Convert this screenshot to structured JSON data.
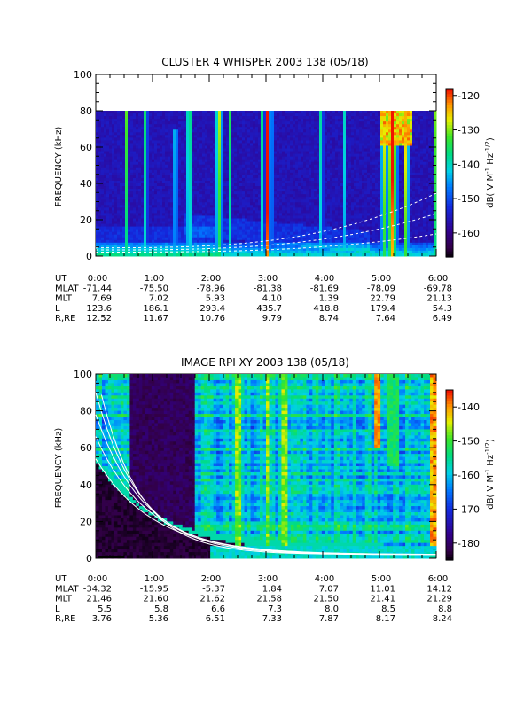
{
  "chart_data": [
    {
      "type": "heatmap",
      "title": "CLUSTER 4 WHISPER 2003 138 (05/18)",
      "ylabel": "FREQUENCY (kHz)",
      "ylim": [
        0,
        100
      ],
      "yticks": [
        "0",
        "20",
        "40",
        "60",
        "80",
        "100"
      ],
      "xlim": [
        "0:00",
        "6:00"
      ],
      "colorbar": {
        "label": "dB( V M⁻¹ Hz⁻¹ᐟ²)",
        "label_main": "dB( V M",
        "label_sup1": "-1",
        "label_mid": " Hz",
        "label_sup2": "-1/2",
        "label_end": ")",
        "range": [
          -167,
          -118
        ],
        "ticks": [
          "-120",
          "-130",
          "-140",
          "-150",
          "-160"
        ],
        "tick_values": [
          -120,
          -130,
          -140,
          -150,
          -160
        ]
      },
      "data_ceiling_khz": 80,
      "ephemeris": {
        "row_labels": [
          "UT",
          "MLAT",
          "MLT",
          "L",
          "R,RE"
        ],
        "columns": [
          [
            "0:00",
            "-71.44",
            "7.69",
            "123.6",
            "12.52"
          ],
          [
            "1:00",
            "-75.50",
            "7.02",
            "186.1",
            "11.67"
          ],
          [
            "2:00",
            "-78.96",
            "5.93",
            "293.4",
            "10.76"
          ],
          [
            "3:00",
            "-81.38",
            "4.10",
            "435.7",
            "9.79"
          ],
          [
            "4:00",
            "-81.69",
            "1.39",
            "418.8",
            "8.74"
          ],
          [
            "5:00",
            "-78.09",
            "22.79",
            "179.4",
            "7.64"
          ],
          [
            "6:00",
            "-69.78",
            "21.13",
            "54.3",
            "6.49"
          ]
        ]
      }
    },
    {
      "type": "heatmap",
      "title": "IMAGE RPI XY 2003 138 (05/18)",
      "ylabel": "FREQUENCY (kHz)",
      "ylim": [
        0,
        100
      ],
      "yticks": [
        "0",
        "20",
        "40",
        "60",
        "80",
        "100"
      ],
      "xlim": [
        "0:00",
        "6:00"
      ],
      "colorbar": {
        "label_main": "dB( V M",
        "label_sup1": "-1",
        "label_mid": " Hz",
        "label_sup2": "-1/2",
        "label_end": ")",
        "range": [
          -185,
          -135
        ],
        "ticks": [
          "-140",
          "-150",
          "-160",
          "-170",
          "-180"
        ],
        "tick_values": [
          -140,
          -150,
          -160,
          -170,
          -180
        ]
      },
      "ephemeris": {
        "row_labels": [
          "UT",
          "MLAT",
          "MLT",
          "L",
          "R,RE"
        ],
        "columns": [
          [
            "0:00",
            "-34.32",
            "21.46",
            "5.5",
            "3.76"
          ],
          [
            "1:00",
            "-15.95",
            "21.60",
            "5.8",
            "5.36"
          ],
          [
            "2:00",
            "-5.37",
            "21.62",
            "6.6",
            "6.51"
          ],
          [
            "3:00",
            "1.84",
            "21.58",
            "7.3",
            "7.33"
          ],
          [
            "4:00",
            "7.07",
            "21.50",
            "8.0",
            "7.87"
          ],
          [
            "5:00",
            "11.01",
            "21.41",
            "8.5",
            "8.17"
          ],
          [
            "6:00",
            "14.12",
            "21.29",
            "8.8",
            "8.24"
          ]
        ]
      }
    }
  ]
}
